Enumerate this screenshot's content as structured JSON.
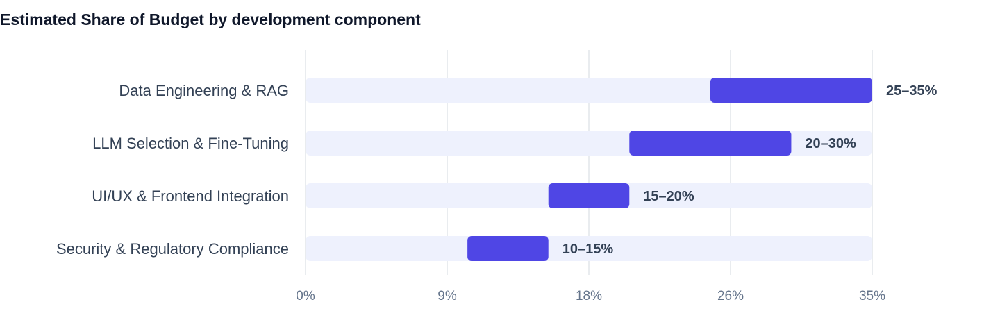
{
  "chart_data": {
    "type": "bar",
    "title": "Estimated Share of Budget by development component",
    "xlabel": "",
    "ylabel": "",
    "orientation": "horizontal",
    "bar_style": "floating range",
    "xlim": [
      0,
      35
    ],
    "ticks": [
      0,
      8.75,
      17.5,
      26.25,
      35
    ],
    "tick_labels": [
      "0%",
      "9%",
      "18%",
      "26%",
      "35%"
    ],
    "grid": true,
    "legend": "none",
    "categories": [
      "Data Engineering & RAG",
      "LLM Selection & Fine-Tuning",
      "UI/UX & Frontend Integration",
      "Security & Regulatory Compliance"
    ],
    "series": [
      {
        "low": [
          25,
          20,
          15,
          10
        ],
        "high": [
          35,
          30,
          20,
          15
        ],
        "value_labels": [
          "25–35%",
          "20–30%",
          "15–20%",
          "10–15%"
        ]
      }
    ],
    "colors": {
      "range_bar": "#4f46e5",
      "track": "#eef1fd",
      "grid": "#e2e5ea"
    }
  }
}
